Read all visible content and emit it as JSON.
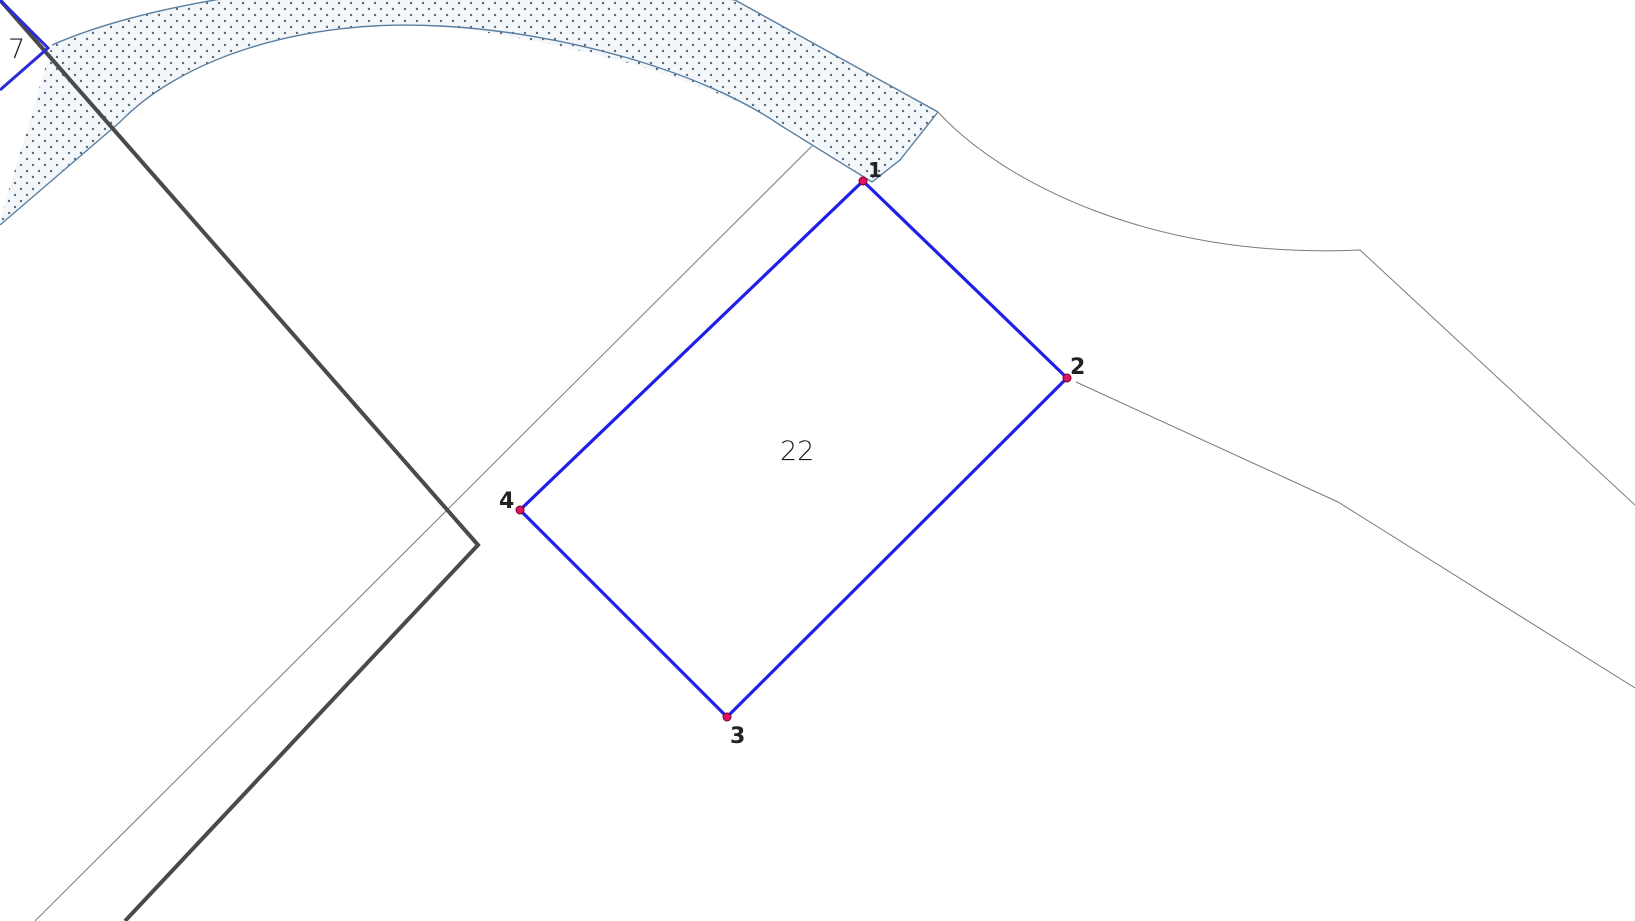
{
  "colors": {
    "selected_parcel": "#1f1fe8",
    "neighbor_boundary": "#2a2ad8",
    "block_boundary": "#4a4a4a",
    "thin_line": "#7a7a7a",
    "road_fill": "#f2f6fa",
    "road_edge": "#5a7fa0",
    "road_dots": "#5a6b7c",
    "vertex": "#e0115f"
  },
  "parcels": {
    "selected_label": "22",
    "neighbor_label": "7"
  },
  "vertices": [
    {
      "label": "1"
    },
    {
      "label": "2"
    },
    {
      "label": "3"
    },
    {
      "label": "4"
    }
  ]
}
